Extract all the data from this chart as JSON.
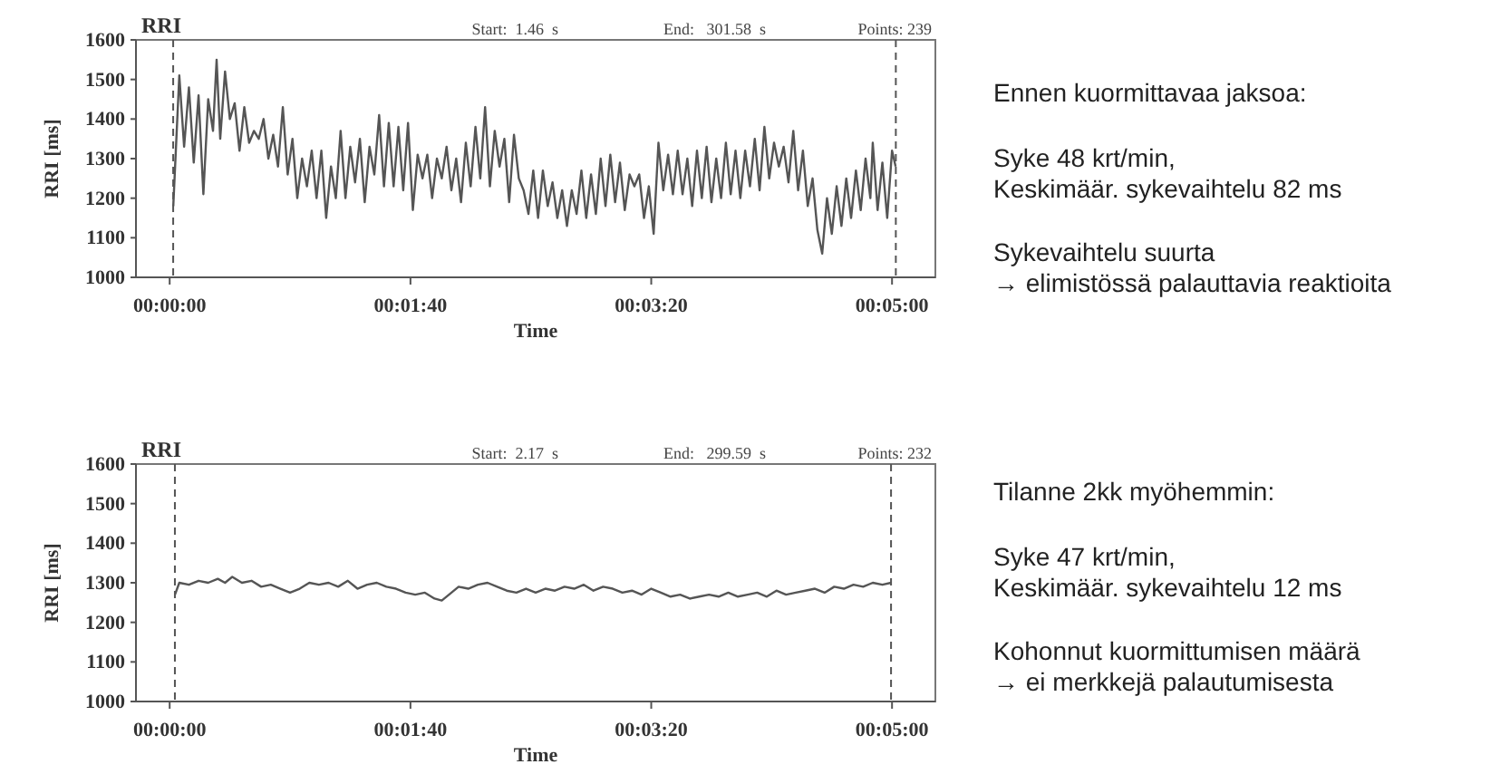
{
  "chart_data": [
    {
      "type": "line",
      "title": "RRI",
      "xlabel": "Time",
      "ylabel": "RRI [ms]",
      "xlim": [
        -14,
        318
      ],
      "ylim": [
        1000,
        1600
      ],
      "xticks": [
        {
          "value": 0,
          "label": "00:00:00"
        },
        {
          "value": 100,
          "label": "00:01:40"
        },
        {
          "value": 200,
          "label": "00:03:20"
        },
        {
          "value": 300,
          "label": "00:05:00"
        }
      ],
      "yticks": [
        1000,
        1100,
        1200,
        1300,
        1400,
        1500,
        1600
      ],
      "annotations": [
        "Start:  1.46  s",
        "End:   301.58  s",
        "Points: 239"
      ],
      "ref_lines": [
        {
          "axis": "x",
          "value": 1.46,
          "line_style": "dashed",
          "color": "#555555"
        },
        {
          "axis": "x",
          "value": 301.58,
          "line_style": "dashed",
          "color": "#555555"
        }
      ],
      "series": [
        {
          "color": "#555555",
          "x": [
            1.5,
            4,
            6,
            8,
            10,
            12,
            14,
            16,
            18,
            19.5,
            21,
            23,
            25,
            27,
            29,
            31,
            33,
            35,
            37,
            39,
            41,
            43,
            45,
            47,
            49,
            51,
            53,
            55,
            57,
            59,
            61,
            63,
            65,
            67,
            69,
            71,
            73,
            75,
            77,
            79,
            81,
            83,
            85,
            87,
            89,
            91,
            93,
            95,
            97,
            99,
            101,
            103,
            105,
            107,
            109,
            111,
            113,
            115,
            117,
            119,
            121,
            123,
            125,
            127,
            129,
            131,
            133,
            135,
            137,
            139,
            141,
            143,
            145,
            147,
            149,
            151,
            153,
            155,
            157,
            159,
            161,
            163,
            165,
            167,
            169,
            171,
            173,
            175,
            177,
            179,
            181,
            183,
            185,
            187,
            189,
            191,
            193,
            195,
            197,
            199,
            201,
            203,
            205,
            207,
            209,
            211,
            213,
            215,
            217,
            219,
            221,
            223,
            225,
            227,
            229,
            231,
            233,
            235,
            237,
            239,
            241,
            243,
            245,
            247,
            249,
            251,
            253,
            255,
            257,
            259,
            261,
            263,
            265,
            267,
            269,
            271,
            273,
            275,
            277,
            279,
            281,
            283,
            285,
            287,
            289,
            291,
            292,
            294,
            296,
            298,
            300,
            301.5
          ],
          "values": [
            1180,
            1510,
            1330,
            1480,
            1290,
            1460,
            1210,
            1450,
            1370,
            1550,
            1350,
            1520,
            1400,
            1440,
            1320,
            1430,
            1340,
            1370,
            1350,
            1400,
            1300,
            1360,
            1280,
            1430,
            1260,
            1350,
            1200,
            1300,
            1230,
            1320,
            1200,
            1320,
            1150,
            1280,
            1200,
            1370,
            1200,
            1330,
            1240,
            1350,
            1190,
            1330,
            1260,
            1410,
            1230,
            1390,
            1230,
            1380,
            1220,
            1390,
            1170,
            1310,
            1250,
            1310,
            1200,
            1300,
            1250,
            1330,
            1220,
            1300,
            1190,
            1340,
            1230,
            1380,
            1250,
            1430,
            1230,
            1370,
            1280,
            1350,
            1190,
            1360,
            1250,
            1220,
            1160,
            1270,
            1150,
            1270,
            1180,
            1240,
            1150,
            1220,
            1130,
            1220,
            1160,
            1270,
            1150,
            1260,
            1160,
            1300,
            1180,
            1310,
            1190,
            1290,
            1170,
            1260,
            1230,
            1260,
            1150,
            1230,
            1110,
            1340,
            1220,
            1310,
            1210,
            1320,
            1210,
            1300,
            1180,
            1320,
            1200,
            1330,
            1190,
            1300,
            1200,
            1340,
            1210,
            1320,
            1200,
            1320,
            1230,
            1350,
            1220,
            1380,
            1250,
            1340,
            1280,
            1330,
            1240,
            1370,
            1220,
            1320,
            1180,
            1250,
            1120,
            1060,
            1200,
            1110,
            1230,
            1130,
            1250,
            1150,
            1270,
            1170,
            1300,
            1200,
            1340,
            1170,
            1290,
            1150,
            1320,
            1280
          ]
        }
      ]
    },
    {
      "type": "other",
      "title": "Ennen kuormittavaa jaksoa:",
      "annotations": [
        "Syke 48 krt/min,",
        "Keskimäär. sykevaihtelu 82 ms",
        "Sykevaihtelu suurta",
        "→ elimistössä palauttavia reaktioita"
      ]
    },
    {
      "type": "line",
      "title": "RRI",
      "xlabel": "Time",
      "ylabel": "RRI [ms]",
      "xlim": [
        -14,
        318
      ],
      "ylim": [
        1000,
        1600
      ],
      "xticks": [
        {
          "value": 0,
          "label": "00:00:00"
        },
        {
          "value": 100,
          "label": "00:01:40"
        },
        {
          "value": 200,
          "label": "00:03:20"
        },
        {
          "value": 300,
          "label": "00:05:00"
        }
      ],
      "yticks": [
        1000,
        1100,
        1200,
        1300,
        1400,
        1500,
        1600
      ],
      "annotations": [
        "Start:  2.17  s",
        "End:   299.59  s",
        "Points: 232"
      ],
      "ref_lines": [
        {
          "axis": "x",
          "value": 2.17,
          "line_style": "dashed",
          "color": "#555555"
        },
        {
          "axis": "x",
          "value": 299.59,
          "line_style": "dashed",
          "color": "#555555"
        }
      ],
      "series": [
        {
          "color": "#555555",
          "x": [
            2.2,
            4,
            8,
            12,
            16,
            20,
            23,
            26,
            30,
            34,
            38,
            42,
            46,
            50,
            54,
            58,
            62,
            66,
            70,
            74,
            78,
            82,
            86,
            90,
            94,
            98,
            102,
            106,
            110,
            113,
            116,
            120,
            124,
            128,
            132,
            136,
            140,
            144,
            148,
            152,
            156,
            160,
            164,
            168,
            172,
            176,
            180,
            184,
            188,
            192,
            196,
            200,
            204,
            208,
            212,
            216,
            220,
            224,
            228,
            232,
            236,
            240,
            244,
            248,
            252,
            256,
            260,
            264,
            268,
            272,
            276,
            280,
            284,
            288,
            292,
            296,
            299.6
          ],
          "values": [
            1270,
            1300,
            1295,
            1305,
            1300,
            1310,
            1300,
            1315,
            1300,
            1305,
            1290,
            1295,
            1285,
            1275,
            1285,
            1300,
            1295,
            1300,
            1290,
            1305,
            1285,
            1295,
            1300,
            1290,
            1285,
            1275,
            1270,
            1275,
            1260,
            1255,
            1270,
            1290,
            1285,
            1295,
            1300,
            1290,
            1280,
            1275,
            1285,
            1275,
            1285,
            1280,
            1290,
            1285,
            1295,
            1280,
            1290,
            1285,
            1275,
            1280,
            1270,
            1285,
            1275,
            1265,
            1270,
            1260,
            1265,
            1270,
            1265,
            1275,
            1265,
            1270,
            1275,
            1265,
            1280,
            1270,
            1275,
            1280,
            1285,
            1275,
            1290,
            1285,
            1295,
            1290,
            1300,
            1295,
            1300
          ]
        }
      ]
    },
    {
      "type": "other",
      "title": "Tilanne 2kk myöhemmin:",
      "annotations": [
        "Syke 47 krt/min,",
        "Keskimäär. sykevaihtelu 12 ms",
        "Kohonnut kuormittumisen määrä",
        "→ ei merkkejä palautumisesta"
      ]
    }
  ]
}
